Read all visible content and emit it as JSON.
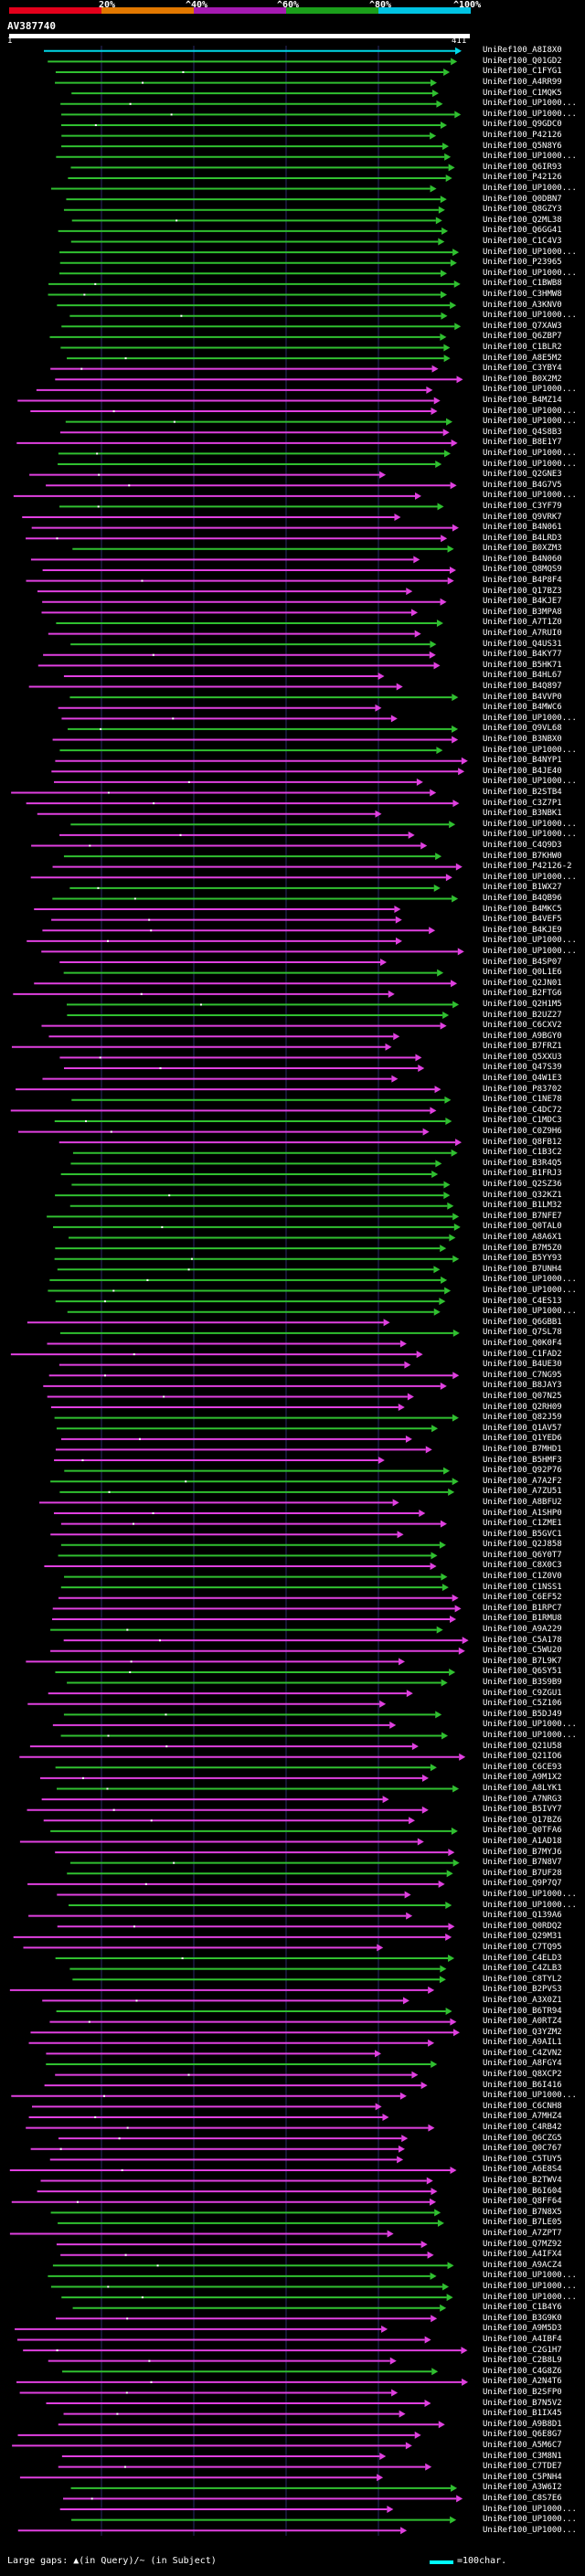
{
  "header": {
    "percent_labels": [
      "20%",
      "^40%",
      "^60%",
      "^80%",
      "^100%"
    ],
    "percent_colors": [
      "#e4001b",
      "#e17800",
      "#a51ab1",
      "#1b9f1b",
      "#00c3e3"
    ],
    "query_name": "AV387740",
    "tick_start": "1",
    "tick_end": "411"
  },
  "legend": {
    "gaps_text": "Large gaps: ▲(in Query)/~ (in Subject)",
    "scale_text": "=100char."
  },
  "hits": [
    "UniRef100_A8I8X0",
    "UniRef100_Q01GD2",
    "UniRef100_C1FYG1",
    "UniRef100_A4RR99",
    "UniRef100_C1MQK5",
    "UniRef100_UP1000...",
    "UniRef100_UP1000...",
    "UniRef100_Q9GDC0",
    "UniRef100_P42126",
    "UniRef100_Q5N8Y6",
    "UniRef100_UP1000...",
    "UniRef100_Q6IR93",
    "UniRef100_P42126",
    "UniRef100_UP1000...",
    "UniRef100_Q0DBN7",
    "UniRef100_Q8GZY3",
    "UniRef100_Q2ML38",
    "UniRef100_Q6GG41",
    "UniRef100_C1C4V3",
    "UniRef100_UP1000...",
    "UniRef100_P23965",
    "UniRef100_UP1000...",
    "UniRef100_C1BWB8",
    "UniRef100_C3HMW8",
    "UniRef100_A3KNV0",
    "UniRef100_UP1000...",
    "UniRef100_Q7XAW3",
    "UniRef100_Q6ZBP7",
    "UniRef100_C1BLR2",
    "UniRef100_A8E5M2",
    "UniRef100_C3YBY4",
    "UniRef100_B0X2M2",
    "UniRef100_UP1000...",
    "UniRef100_B4MZ14",
    "UniRef100_UP1000...",
    "UniRef100_UP1000...",
    "UniRef100_Q4S8B3",
    "UniRef100_B8E1Y7",
    "UniRef100_UP1000...",
    "UniRef100_UP1000...",
    "UniRef100_Q2GNE3",
    "UniRef100_B4G7V5",
    "UniRef100_UP1000...",
    "UniRef100_C3YF79",
    "UniRef100_Q9VRK7",
    "UniRef100_B4N061",
    "UniRef100_B4LRD3",
    "UniRef100_B0XZM3",
    "UniRef100_B4N060",
    "UniRef100_Q8MQS9",
    "UniRef100_B4P8F4",
    "UniRef100_Q17BZ3",
    "UniRef100_B4KJE7",
    "UniRef100_B3MPA8",
    "UniRef100_A7T1Z0",
    "UniRef100_A7RUI0",
    "UniRef100_Q4US31",
    "UniRef100_B4KY77",
    "UniRef100_B5HK71",
    "UniRef100_B4HL67",
    "UniRef100_B4Q897",
    "UniRef100_B4VVP0",
    "UniRef100_B4MWC6",
    "UniRef100_UP1000...",
    "UniRef100_Q9VL68",
    "UniRef100_B3NBX0",
    "UniRef100_UP1000...",
    "UniRef100_B4NYP1",
    "UniRef100_B4JE40",
    "UniRef100_UP1000...",
    "UniRef100_B2STB4",
    "UniRef100_C3Z7P1",
    "UniRef100_B3NBK1",
    "UniRef100_UP1000...",
    "UniRef100_UP1000...",
    "UniRef100_C4Q9D3",
    "UniRef100_B7KHW0",
    "UniRef100_P42126-2",
    "UniRef100_UP1000...",
    "UniRef100_B1WX27",
    "UniRef100_B4QB96",
    "UniRef100_B4MKC5",
    "UniRef100_B4VEF5",
    "UniRef100_B4KJE9",
    "UniRef100_UP1000...",
    "UniRef100_UP1000...",
    "UniRef100_B4SP07",
    "UniRef100_Q0L1E6",
    "UniRef100_Q2JN01",
    "UniRef100_B2FTG6",
    "UniRef100_Q2H1M5",
    "UniRef100_B2UZ27",
    "UniRef100_C6CXV2",
    "UniRef100_A9BGY0",
    "UniRef100_B7FRZ1",
    "UniRef100_Q5XXU3",
    "UniRef100_Q47S39",
    "UniRef100_Q4W1E3",
    "UniRef100_P83702",
    "UniRef100_C1NE78",
    "UniRef100_C4DC72",
    "UniRef100_C1MDC3",
    "UniRef100_C0Z9H6",
    "UniRef100_Q8FB12",
    "UniRef100_C1B3C2",
    "UniRef100_B3R4Q5",
    "UniRef100_B1FRJ3",
    "UniRef100_Q2SZ36",
    "UniRef100_Q32KZ1",
    "UniRef100_B1LM32",
    "UniRef100_B7NFE7",
    "UniRef100_Q0TAL0",
    "UniRef100_A8A6X1",
    "UniRef100_B7M5Z0",
    "UniRef100_B5YY93",
    "UniRef100_B7UNH4",
    "UniRef100_UP1000...",
    "UniRef100_UP1000...",
    "UniRef100_C4ES13",
    "UniRef100_UP1000...",
    "UniRef100_Q6GBB1",
    "UniRef100_Q7SL78",
    "UniRef100_Q0K0F4",
    "UniRef100_C1FAD2",
    "UniRef100_B4UE30",
    "UniRef100_C7NG95",
    "UniRef100_B8JAY3",
    "UniRef100_Q07N25",
    "UniRef100_Q2RH09",
    "UniRef100_Q82J59",
    "UniRef100_Q1AV57",
    "UniRef100_Q1YED6",
    "UniRef100_B7MHD1",
    "UniRef100_B5HMF3",
    "UniRef100_Q92P76",
    "UniRef100_A7A2F2",
    "UniRef100_A7ZU51",
    "UniRef100_A8BFU2",
    "UniRef100_A1SHP0",
    "UniRef100_C1ZME1",
    "UniRef100_B5GVC1",
    "UniRef100_Q2J858",
    "UniRef100_Q6Y0T7",
    "UniRef100_C8X0C3",
    "UniRef100_C1Z0V0",
    "UniRef100_C1NSS1",
    "UniRef100_C6EF52",
    "UniRef100_B1RPC7",
    "UniRef100_B1RMU8",
    "UniRef100_A9A229",
    "UniRef100_C5A178",
    "UniRef100_C5WU20",
    "UniRef100_B7L9K7",
    "UniRef100_Q6SY51",
    "UniRef100_B3S9B9",
    "UniRef100_C9ZGU1",
    "UniRef100_C5Z106",
    "UniRef100_B5DJ49",
    "UniRef100_UP1000...",
    "UniRef100_UP1000...",
    "UniRef100_Q21U58",
    "UniRef100_Q21IO6",
    "UniRef100_C6CE93",
    "UniRef100_A9M1X2",
    "UniRef100_A8LYK1",
    "UniRef100_A7NRG3",
    "UniRef100_B5IVY7",
    "UniRef100_Q17BZ6",
    "UniRef100_Q0TFA6",
    "UniRef100_A1AD18",
    "UniRef100_B7MYJ6",
    "UniRef100_B7N8V7",
    "UniRef100_B7UF28",
    "UniRef100_Q9P7Q7",
    "UniRef100_UP1000...",
    "UniRef100_UP1000...",
    "UniRef100_Q139A6",
    "UniRef100_Q0RDQ2",
    "UniRef100_Q29M31",
    "UniRef100_C7TQ95",
    "UniRef100_C4ELD3",
    "UniRef100_C4ZLB3",
    "UniRef100_C8TYL2",
    "UniRef100_B2PVS3",
    "UniRef100_A3X0Z1",
    "UniRef100_B6TR94",
    "UniRef100_A0RTZ4",
    "UniRef100_Q3YZM2",
    "UniRef100_A9AIL1",
    "UniRef100_C4ZVN2",
    "UniRef100_A8FGY4",
    "UniRef100_Q8XCP2",
    "UniRef100_B6I416",
    "UniRef100_UP1000...",
    "UniRef100_C6CNH8",
    "UniRef100_A7MHZ4",
    "UniRef100_C4RB42",
    "UniRef100_Q6CZG5",
    "UniRef100_Q0C767",
    "UniRef100_C5TUY5",
    "UniRef100_A6E8S4",
    "UniRef100_B2TWV4",
    "UniRef100_B6I604",
    "UniRef100_Q8FF64",
    "UniRef100_B7N8X5",
    "UniRef100_B7LE05",
    "UniRef100_A7ZPT7",
    "UniRef100_Q7MZ92",
    "UniRef100_A4IFX4",
    "UniRef100_A9ACZ4",
    "UniRef100_UP1000...",
    "UniRef100_UP1000...",
    "UniRef100_UP1000...",
    "UniRef100_C1B4Y6",
    "UniRef100_B3G9K0",
    "UniRef100_A9M5D3",
    "UniRef100_A4IBF4",
    "UniRef100_C2G1H7",
    "UniRef100_C2B8L9",
    "UniRef100_C4G8Z6",
    "UniRef100_A2N4T6",
    "UniRef100_B2SFP0",
    "UniRef100_B7N5V2",
    "UniRef100_B1IX45",
    "UniRef100_A9B8D1",
    "UniRef100_Q6E8G7",
    "UniRef100_A5M6C7",
    "UniRef100_C3M8N1",
    "UniRef100_C7TDE7",
    "UniRef100_C5PNH4",
    "UniRef100_A3W6I2",
    "UniRef100_C8S7E6",
    "UniRef100_UP1000...",
    "UniRef100_UP1000...",
    "UniRef100_UP1000..."
  ],
  "colors": {
    "magenta": "#e040e0",
    "green": "#30c030",
    "cyan": "#00d8e8",
    "grid": "#2a2a66"
  }
}
